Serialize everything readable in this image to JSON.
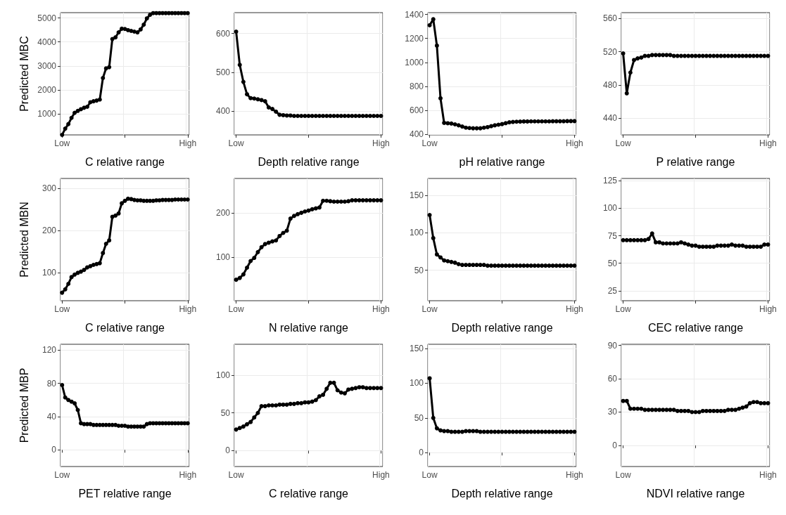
{
  "chart_data": [
    {
      "type": "line",
      "ylabel": "Predicted MBC",
      "xlabel": "C relative range",
      "color": "#000000",
      "marker": "circle",
      "line_style": "solid",
      "grid": true,
      "ylim": [
        130,
        5220
      ],
      "yticks": [
        1000,
        2000,
        3000,
        4000,
        5000
      ],
      "categories": [
        "Low",
        null,
        null,
        null,
        null,
        null,
        null,
        null,
        null,
        null,
        null,
        null,
        null,
        null,
        null,
        null,
        null,
        null,
        null,
        null,
        null,
        null,
        null,
        null,
        null,
        null,
        null,
        null,
        null,
        null,
        null,
        null,
        null,
        null,
        null,
        null,
        null,
        null,
        null,
        null,
        "High"
      ],
      "values": [
        130,
        390,
        580,
        840,
        1050,
        1130,
        1200,
        1260,
        1300,
        1490,
        1530,
        1560,
        1600,
        2500,
        2900,
        2950,
        4120,
        4190,
        4400,
        4550,
        4540,
        4490,
        4460,
        4430,
        4400,
        4520,
        4720,
        4980,
        5130,
        5200,
        5200,
        5200,
        5200,
        5200,
        5200,
        5200,
        5200,
        5200,
        5200,
        5200,
        5200
      ]
    },
    {
      "type": "line",
      "xlabel": "Depth relative range",
      "color": "#000000",
      "marker": "circle",
      "line_style": "solid",
      "grid": true,
      "ylim": [
        338,
        654
      ],
      "yticks": [
        400,
        500,
        600
      ],
      "categories": [
        "Low",
        null,
        null,
        null,
        null,
        null,
        null,
        null,
        null,
        null,
        null,
        null,
        null,
        null,
        null,
        null,
        null,
        null,
        null,
        null,
        null,
        null,
        null,
        null,
        null,
        null,
        null,
        null,
        null,
        null,
        null,
        null,
        null,
        null,
        null,
        null,
        null,
        null,
        null,
        null,
        "High"
      ],
      "values": [
        605,
        519,
        475,
        443,
        433,
        432,
        430,
        428,
        425,
        409,
        405,
        398,
        390,
        389,
        388,
        388,
        387,
        387,
        387,
        387,
        387,
        387,
        387,
        387,
        387,
        387,
        387,
        387,
        387,
        387,
        387,
        387,
        387,
        387,
        387,
        387,
        387,
        387,
        387,
        387,
        387
      ]
    },
    {
      "type": "line",
      "xlabel": "pH relative range",
      "color": "#000000",
      "marker": "circle",
      "line_style": "solid",
      "grid": true,
      "ylim": [
        395,
        1415
      ],
      "yticks": [
        400,
        600,
        800,
        1000,
        1200,
        1400
      ],
      "categories": [
        "Low",
        null,
        null,
        null,
        null,
        null,
        null,
        null,
        null,
        null,
        null,
        null,
        null,
        null,
        null,
        null,
        null,
        null,
        null,
        null,
        null,
        null,
        null,
        null,
        null,
        null,
        null,
        null,
        null,
        null,
        null,
        null,
        null,
        null,
        null,
        null,
        null,
        null,
        null,
        null,
        "High"
      ],
      "values": [
        1310,
        1360,
        1140,
        700,
        495,
        492,
        490,
        483,
        475,
        465,
        455,
        452,
        450,
        450,
        450,
        455,
        460,
        468,
        475,
        480,
        485,
        493,
        500,
        503,
        505,
        506,
        507,
        507,
        508,
        508,
        508,
        508,
        508,
        508,
        509,
        509,
        509,
        509,
        510,
        510,
        510
      ]
    },
    {
      "type": "line",
      "xlabel": "P relative range",
      "color": "#000000",
      "marker": "circle",
      "line_style": "solid",
      "grid": true,
      "ylim": [
        420,
        567
      ],
      "yticks": [
        440,
        480,
        520,
        560
      ],
      "categories": [
        "Low",
        null,
        null,
        null,
        null,
        null,
        null,
        null,
        null,
        null,
        null,
        null,
        null,
        null,
        null,
        null,
        null,
        null,
        null,
        null,
        null,
        null,
        null,
        null,
        null,
        null,
        null,
        null,
        null,
        null,
        null,
        null,
        null,
        null,
        null,
        null,
        null,
        null,
        null,
        null,
        "High"
      ],
      "values": [
        518,
        470,
        495,
        510,
        512,
        513,
        515,
        515,
        516,
        516,
        516,
        516,
        516,
        516,
        515,
        515,
        515,
        515,
        515,
        515,
        515,
        515,
        515,
        515,
        515,
        515,
        515,
        515,
        515,
        515,
        515,
        515,
        515,
        515,
        515,
        515,
        515,
        515,
        515,
        515,
        515
      ]
    },
    {
      "type": "line",
      "ylabel": "Predicted MBN",
      "xlabel": "C relative range",
      "color": "#000000",
      "marker": "circle",
      "line_style": "solid",
      "grid": true,
      "ylim": [
        33,
        323
      ],
      "yticks": [
        100,
        200,
        300
      ],
      "categories": [
        "Low",
        null,
        null,
        null,
        null,
        null,
        null,
        null,
        null,
        null,
        null,
        null,
        null,
        null,
        null,
        null,
        null,
        null,
        null,
        null,
        null,
        null,
        null,
        null,
        null,
        null,
        null,
        null,
        null,
        null,
        null,
        null,
        null,
        null,
        null,
        null,
        null,
        null,
        null,
        null,
        "High"
      ],
      "values": [
        52,
        60,
        73,
        89,
        95,
        99,
        102,
        106,
        112,
        115,
        118,
        120,
        122,
        146,
        168,
        176,
        232,
        235,
        240,
        264,
        270,
        275,
        274,
        272,
        271,
        271,
        270,
        270,
        270,
        270,
        271,
        271,
        272,
        272,
        272,
        272,
        273,
        273,
        273,
        273,
        273
      ]
    },
    {
      "type": "line",
      "xlabel": "N relative range",
      "color": "#000000",
      "marker": "circle",
      "line_style": "solid",
      "grid": true,
      "ylim": [
        3,
        277
      ],
      "yticks": [
        100,
        200
      ],
      "categories": [
        "Low",
        null,
        null,
        null,
        null,
        null,
        null,
        null,
        null,
        null,
        null,
        null,
        null,
        null,
        null,
        null,
        null,
        null,
        null,
        null,
        null,
        null,
        null,
        null,
        null,
        null,
        null,
        null,
        null,
        null,
        null,
        null,
        null,
        null,
        null,
        null,
        null,
        null,
        null,
        null,
        "High"
      ],
      "values": [
        50,
        54,
        62,
        77,
        92,
        99,
        112,
        123,
        130,
        133,
        136,
        138,
        148,
        155,
        160,
        187,
        193,
        197,
        200,
        203,
        205,
        208,
        210,
        212,
        227,
        227,
        226,
        225,
        225,
        225,
        225,
        226,
        228,
        228,
        228,
        228,
        228,
        228,
        228,
        228,
        228
      ]
    },
    {
      "type": "line",
      "xlabel": "Depth relative range",
      "color": "#000000",
      "marker": "circle",
      "line_style": "solid",
      "grid": true,
      "ylim": [
        9,
        173
      ],
      "yticks": [
        50,
        100,
        150
      ],
      "categories": [
        "Low",
        null,
        null,
        null,
        null,
        null,
        null,
        null,
        null,
        null,
        null,
        null,
        null,
        null,
        null,
        null,
        null,
        null,
        null,
        null,
        null,
        null,
        null,
        null,
        null,
        null,
        null,
        null,
        null,
        null,
        null,
        null,
        null,
        null,
        null,
        null,
        null,
        null,
        null,
        null,
        "High"
      ],
      "values": [
        124,
        93,
        71,
        67,
        63,
        62,
        61,
        60,
        58,
        57,
        57,
        57,
        57,
        57,
        57,
        57,
        56,
        56,
        56,
        56,
        56,
        56,
        56,
        56,
        56,
        56,
        56,
        56,
        56,
        56,
        56,
        56,
        56,
        56,
        56,
        56,
        56,
        56,
        56,
        56,
        56
      ]
    },
    {
      "type": "line",
      "xlabel": "CEC relative range",
      "color": "#000000",
      "marker": "circle",
      "line_style": "solid",
      "grid": true,
      "ylim": [
        16,
        127
      ],
      "yticks": [
        25,
        50,
        75,
        100,
        125
      ],
      "categories": [
        "Low",
        null,
        null,
        null,
        null,
        null,
        null,
        null,
        null,
        null,
        null,
        null,
        null,
        null,
        null,
        null,
        null,
        null,
        null,
        null,
        null,
        null,
        null,
        null,
        null,
        null,
        null,
        null,
        null,
        null,
        null,
        null,
        null,
        null,
        null,
        null,
        null,
        null,
        null,
        null,
        "High"
      ],
      "values": [
        71,
        71,
        71,
        71,
        71,
        71,
        71,
        72,
        77,
        69,
        69,
        68,
        68,
        68,
        68,
        68,
        69,
        68,
        67,
        66,
        66,
        65,
        65,
        65,
        65,
        65,
        66,
        66,
        66,
        66,
        67,
        66,
        66,
        66,
        65,
        65,
        65,
        65,
        65,
        67,
        67
      ]
    },
    {
      "type": "line",
      "ylabel": "Predicted MBP",
      "xlabel": "PET relative range",
      "color": "#000000",
      "marker": "circle",
      "line_style": "solid",
      "grid": true,
      "ylim": [
        -20,
        127
      ],
      "yticks": [
        0,
        40,
        80,
        120
      ],
      "categories": [
        "Low",
        null,
        null,
        null,
        null,
        null,
        null,
        null,
        null,
        null,
        null,
        null,
        null,
        null,
        null,
        null,
        null,
        null,
        null,
        null,
        null,
        null,
        null,
        null,
        null,
        null,
        null,
        null,
        null,
        null,
        null,
        null,
        null,
        null,
        null,
        null,
        null,
        null,
        null,
        null,
        "High"
      ],
      "values": [
        78,
        63,
        60,
        58,
        56,
        48,
        32,
        31,
        31,
        31,
        30,
        30,
        30,
        30,
        30,
        30,
        30,
        30,
        29,
        29,
        29,
        28,
        28,
        28,
        28,
        28,
        28,
        31,
        32,
        32,
        32,
        32,
        32,
        32,
        32,
        32,
        32,
        32,
        32,
        32,
        32
      ]
    },
    {
      "type": "line",
      "xlabel": "C relative range",
      "color": "#000000",
      "marker": "circle",
      "line_style": "solid",
      "grid": true,
      "ylim": [
        -21,
        141
      ],
      "yticks": [
        0,
        50,
        100
      ],
      "categories": [
        "Low",
        null,
        null,
        null,
        null,
        null,
        null,
        null,
        null,
        null,
        null,
        null,
        null,
        null,
        null,
        null,
        null,
        null,
        null,
        null,
        null,
        null,
        null,
        null,
        null,
        null,
        null,
        null,
        null,
        null,
        null,
        null,
        null,
        null,
        null,
        null,
        null,
        null,
        null,
        null,
        "High"
      ],
      "values": [
        28,
        30,
        32,
        35,
        38,
        44,
        50,
        59,
        59,
        60,
        60,
        60,
        61,
        61,
        61,
        62,
        62,
        63,
        63,
        64,
        64,
        65,
        67,
        72,
        74,
        82,
        90,
        90,
        80,
        77,
        76,
        81,
        82,
        83,
        84,
        84,
        83,
        83,
        83,
        83,
        83
      ]
    },
    {
      "type": "line",
      "xlabel": "Depth relative range",
      "color": "#000000",
      "marker": "circle",
      "line_style": "solid",
      "grid": true,
      "ylim": [
        -20,
        156
      ],
      "yticks": [
        0,
        50,
        100,
        150
      ],
      "categories": [
        "Low",
        null,
        null,
        null,
        null,
        null,
        null,
        null,
        null,
        null,
        null,
        null,
        null,
        null,
        null,
        null,
        null,
        null,
        null,
        null,
        null,
        null,
        null,
        null,
        null,
        null,
        null,
        null,
        null,
        null,
        null,
        null,
        null,
        null,
        null,
        null,
        null,
        null,
        null,
        null,
        "High"
      ],
      "values": [
        107,
        50,
        35,
        32,
        31,
        31,
        30,
        30,
        30,
        30,
        31,
        31,
        31,
        31,
        30,
        30,
        30,
        30,
        30,
        30,
        30,
        30,
        30,
        30,
        30,
        30,
        30,
        30,
        30,
        30,
        30,
        30,
        30,
        30,
        30,
        30,
        30,
        30,
        30,
        30,
        30
      ]
    },
    {
      "type": "line",
      "xlabel": "NDVI relative range",
      "color": "#000000",
      "marker": "circle",
      "line_style": "solid",
      "grid": true,
      "ylim": [
        -19,
        91
      ],
      "yticks": [
        0,
        30,
        60,
        90
      ],
      "categories": [
        "Low",
        null,
        null,
        null,
        null,
        null,
        null,
        null,
        null,
        null,
        null,
        null,
        null,
        null,
        null,
        null,
        null,
        null,
        null,
        null,
        null,
        null,
        null,
        null,
        null,
        null,
        null,
        null,
        null,
        null,
        null,
        null,
        null,
        null,
        null,
        null,
        null,
        null,
        null,
        null,
        "High"
      ],
      "values": [
        40,
        40,
        33,
        33,
        33,
        33,
        32,
        32,
        32,
        32,
        32,
        32,
        32,
        32,
        32,
        31,
        31,
        31,
        31,
        30,
        30,
        30,
        31,
        31,
        31,
        31,
        31,
        31,
        31,
        32,
        32,
        32,
        33,
        34,
        35,
        38,
        39,
        39,
        38,
        38,
        38
      ]
    }
  ]
}
